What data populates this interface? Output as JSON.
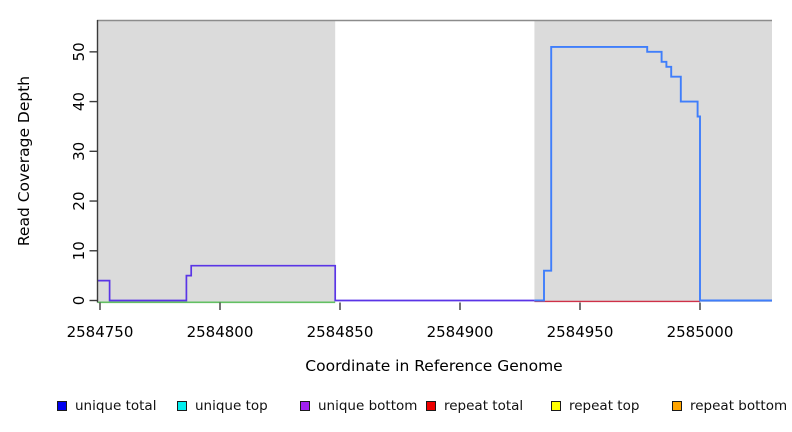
{
  "chart_data": {
    "type": "line",
    "subtype": "step-coverage-plot",
    "title": "",
    "xlabel": "Coordinate in Reference Genome",
    "ylabel": "Read Coverage Depth",
    "xlim": [
      2584748.75,
      2585030
    ],
    "ylim": [
      0,
      56.5
    ],
    "xticks": [
      2584750,
      2584800,
      2584850,
      2584900,
      2584950,
      2585000
    ],
    "yticks": [
      0,
      10,
      20,
      30,
      40,
      50
    ],
    "grid": false,
    "plot_background": "#ffffff",
    "shaded_regions": [
      {
        "from": 2584749,
        "to": 2584848,
        "color": "#dbdbdb"
      },
      {
        "from": 2584931,
        "to": 2585030,
        "color": "#dbdbdb"
      }
    ],
    "series": [
      {
        "id": "overlap-green",
        "name": "baseline line (green)",
        "color": "#63c063",
        "segments": [
          {
            "from": 2584749,
            "to": 2584848,
            "depth": 0
          }
        ]
      },
      {
        "id": "repeat-red",
        "name": "repeat total baseline (red)",
        "color": "#cf3148",
        "segments": [
          {
            "from": 2584931,
            "to": 2585000,
            "depth": 0
          }
        ]
      },
      {
        "id": "unique-left",
        "name": "unique coverage steps (violet, left block)",
        "color": "#5a35e6",
        "segments": [
          {
            "from": 2584749,
            "to": 2584754,
            "depth": 4
          },
          {
            "from": 2584754,
            "to": 2584786,
            "depth": 0
          },
          {
            "from": 2584786,
            "to": 2584788,
            "depth": 5
          },
          {
            "from": 2584788,
            "to": 2584848,
            "depth": 7
          },
          {
            "from": 2584848,
            "to": 2584931,
            "depth": 0
          }
        ]
      },
      {
        "id": "unique-right",
        "name": "unique total coverage steps (blue, right block)",
        "color": "#3f7efb",
        "segments": [
          {
            "from": 2584931,
            "to": 2584935,
            "depth": 0
          },
          {
            "from": 2584935,
            "to": 2584938,
            "depth": 6
          },
          {
            "from": 2584938,
            "to": 2584978,
            "depth": 51
          },
          {
            "from": 2584978,
            "to": 2584984,
            "depth": 50
          },
          {
            "from": 2584984,
            "to": 2584986,
            "depth": 48
          },
          {
            "from": 2584986,
            "to": 2584988,
            "depth": 47
          },
          {
            "from": 2584988,
            "to": 2584992,
            "depth": 45
          },
          {
            "from": 2584992,
            "to": 2584999,
            "depth": 40
          },
          {
            "from": 2584999,
            "to": 2585000,
            "depth": 37
          },
          {
            "from": 2585000,
            "to": 2585030,
            "depth": 0
          }
        ]
      }
    ]
  },
  "legend": {
    "items": [
      {
        "label": "unique total",
        "color": "#0000ee"
      },
      {
        "label": "unique top",
        "color": "#00eeee"
      },
      {
        "label": "unique bottom",
        "color": "#a020f0"
      },
      {
        "label": "repeat total",
        "color": "#ee0000"
      },
      {
        "label": "repeat top",
        "color": "#ffff00"
      },
      {
        "label": "repeat bottom",
        "color": "#ffa500"
      }
    ]
  }
}
